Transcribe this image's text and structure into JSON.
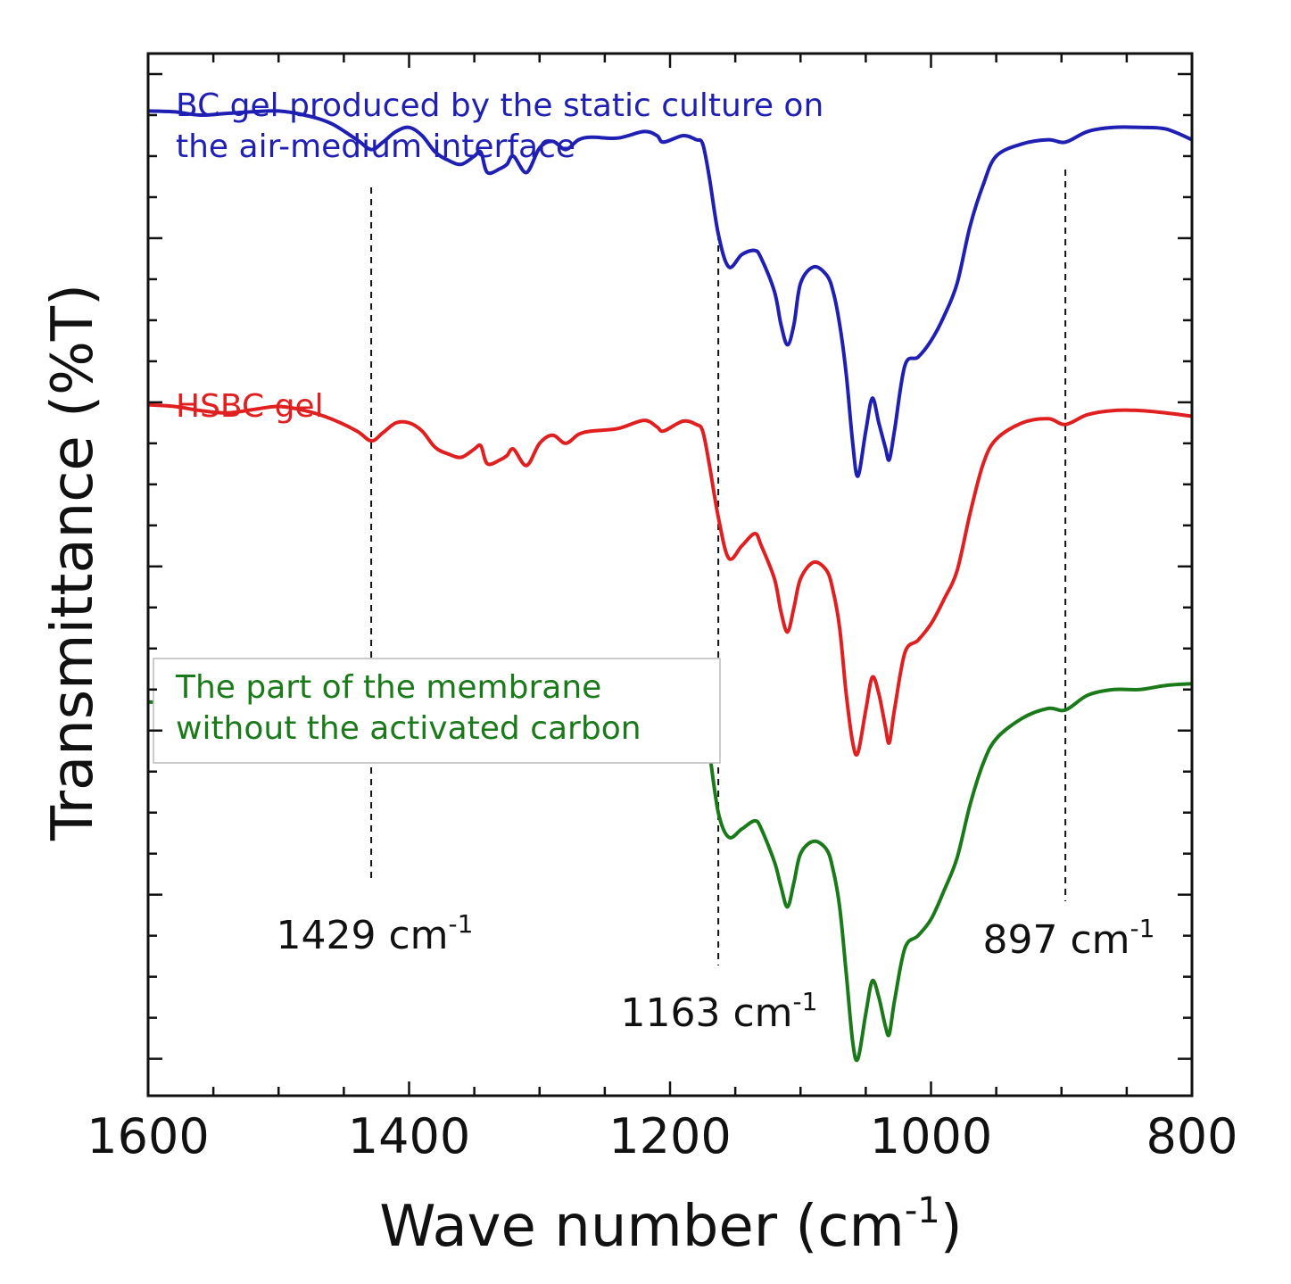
{
  "chart_data": {
    "type": "line",
    "xlabel": "Wave number (cm",
    "xlabel_sup": "-1",
    "xlabel_close": ")",
    "ylabel": "Transmittance (%T)",
    "xlim": [
      1600,
      800
    ],
    "x_reversed": true,
    "xticks": [
      1600,
      1400,
      1200,
      1000,
      800
    ],
    "grid": false,
    "series": [
      {
        "name": "BC gel produced by the static culture on the air-medium interface",
        "label_lines": [
          "BC gel produced by the static culture on",
          "the air-medium interface"
        ],
        "color": "#1f1fb4",
        "x": [
          1600,
          1580,
          1560,
          1540,
          1520,
          1500,
          1480,
          1460,
          1440,
          1429,
          1420,
          1410,
          1400,
          1390,
          1380,
          1370,
          1360,
          1350,
          1345,
          1340,
          1330,
          1325,
          1320,
          1310,
          1300,
          1290,
          1280,
          1270,
          1260,
          1240,
          1220,
          1210,
          1205,
          1190,
          1180,
          1175,
          1170,
          1163,
          1155,
          1145,
          1135,
          1130,
          1120,
          1115,
          1110,
          1105,
          1100,
          1090,
          1080,
          1075,
          1070,
          1065,
          1060,
          1056,
          1050,
          1045,
          1040,
          1035,
          1032,
          1028,
          1020,
          1010,
          1000,
          990,
          980,
          970,
          960,
          950,
          930,
          910,
          897,
          880,
          860,
          840,
          820,
          800
        ],
        "y": [
          93.0,
          92.9,
          92.5,
          92.7,
          92.9,
          93.0,
          92.5,
          91.5,
          89.5,
          88.3,
          89.2,
          90.5,
          91.0,
          90.0,
          88.0,
          87.0,
          86.5,
          87.5,
          88.0,
          85.5,
          86.0,
          86.5,
          87.5,
          85.5,
          88.5,
          89.3,
          88.3,
          89.5,
          89.8,
          89.7,
          90.5,
          90.0,
          89.2,
          90.0,
          89.5,
          89.0,
          85.0,
          78.0,
          74.0,
          75.5,
          76.0,
          75.0,
          71.0,
          67.0,
          64.5,
          67.0,
          72.0,
          74.0,
          73.0,
          71.0,
          67.0,
          61.0,
          52.5,
          48.5,
          54.0,
          58.0,
          55.0,
          52.0,
          50.5,
          54.0,
          62.0,
          63.0,
          65.0,
          68.0,
          72.0,
          79.0,
          84.0,
          87.5,
          89.0,
          89.5,
          89.2,
          90.5,
          91.0,
          91.0,
          90.8,
          89.5
        ]
      },
      {
        "name": "HSBC gel",
        "label_lines": [
          "HSBC gel"
        ],
        "color": "#e02020",
        "x": [
          1600,
          1580,
          1560,
          1540,
          1520,
          1500,
          1480,
          1460,
          1440,
          1429,
          1420,
          1410,
          1400,
          1390,
          1380,
          1370,
          1360,
          1350,
          1345,
          1340,
          1330,
          1325,
          1320,
          1310,
          1300,
          1290,
          1280,
          1270,
          1260,
          1240,
          1220,
          1210,
          1205,
          1190,
          1180,
          1175,
          1170,
          1163,
          1155,
          1145,
          1135,
          1130,
          1120,
          1115,
          1110,
          1105,
          1100,
          1090,
          1080,
          1075,
          1070,
          1065,
          1060,
          1056,
          1050,
          1045,
          1040,
          1035,
          1032,
          1028,
          1020,
          1010,
          1000,
          990,
          980,
          970,
          960,
          950,
          930,
          910,
          897,
          880,
          860,
          840,
          820,
          800
        ],
        "y": [
          57.2,
          57.0,
          56.5,
          56.2,
          56.6,
          57.0,
          56.5,
          55.5,
          54.0,
          52.8,
          53.8,
          55.0,
          55.0,
          54.0,
          52.0,
          51.2,
          50.8,
          51.8,
          52.2,
          50.0,
          50.5,
          51.0,
          51.8,
          49.8,
          52.5,
          53.5,
          52.5,
          53.6,
          54.0,
          54.3,
          55.3,
          54.5,
          54.0,
          55.2,
          54.8,
          54.0,
          50.0,
          43.5,
          38.5,
          40.0,
          41.5,
          40.0,
          36.0,
          32.0,
          29.5,
          32.5,
          36.0,
          38.0,
          37.0,
          34.5,
          30.0,
          22.0,
          16.0,
          14.8,
          20.0,
          24.0,
          22.0,
          18.0,
          16.0,
          20.0,
          27.0,
          28.5,
          30.5,
          33.5,
          37.0,
          44.0,
          50.0,
          53.0,
          55.0,
          55.5,
          54.8,
          56.0,
          56.5,
          56.5,
          56.2,
          55.8
        ]
      },
      {
        "name": "The part of the membrane without the activated carbon",
        "label_lines": [
          "The part of the membrane",
          "without the activated carbon"
        ],
        "color": "#1a7a1a",
        "x": [
          1600,
          1580,
          1560,
          1540,
          1520,
          1500,
          1480,
          1460,
          1440,
          1429,
          1420,
          1410,
          1400,
          1390,
          1380,
          1370,
          1360,
          1350,
          1345,
          1340,
          1330,
          1325,
          1320,
          1310,
          1300,
          1290,
          1280,
          1270,
          1260,
          1240,
          1220,
          1210,
          1205,
          1190,
          1180,
          1175,
          1170,
          1163,
          1155,
          1145,
          1135,
          1130,
          1120,
          1115,
          1110,
          1105,
          1100,
          1090,
          1080,
          1075,
          1070,
          1065,
          1060,
          1056,
          1050,
          1045,
          1040,
          1035,
          1032,
          1028,
          1020,
          1010,
          1000,
          990,
          980,
          970,
          960,
          950,
          930,
          910,
          897,
          880,
          860,
          840,
          820,
          800
        ],
        "y": [
          21.0,
          20.8,
          20.5,
          20.2,
          20.8,
          21.0,
          20.5,
          19.0,
          17.5,
          16.3,
          17.5,
          18.8,
          19.5,
          18.5,
          16.0,
          15.2,
          15.0,
          15.8,
          16.2,
          14.5,
          15.0,
          15.5,
          16.0,
          14.2,
          17.5,
          18.8,
          18.0,
          19.0,
          19.8,
          20.0,
          21.5,
          21.0,
          20.5,
          21.8,
          20.5,
          19.0,
          15.0,
          7.5,
          4.5,
          5.5,
          6.5,
          5.5,
          1.5,
          -1.5,
          -4.0,
          -1.0,
          2.5,
          4.0,
          3.0,
          0.5,
          -4.0,
          -12.0,
          -20.5,
          -22.5,
          -17.0,
          -13.0,
          -15.0,
          -18.5,
          -19.5,
          -15.5,
          -9.0,
          -7.5,
          -5.5,
          -2.0,
          2.0,
          8.5,
          13.5,
          16.5,
          19.0,
          20.2,
          20.0,
          21.8,
          22.5,
          22.5,
          23.0,
          23.2
        ]
      }
    ],
    "ylim": [
      -27,
      100
    ],
    "annotations": [
      {
        "text": "1429 cm",
        "sup": "-1",
        "x": 1429
      },
      {
        "text": "1163 cm",
        "sup": "-1",
        "x": 1163
      },
      {
        "text": "897 cm",
        "sup": "-1",
        "x": 897
      }
    ]
  }
}
